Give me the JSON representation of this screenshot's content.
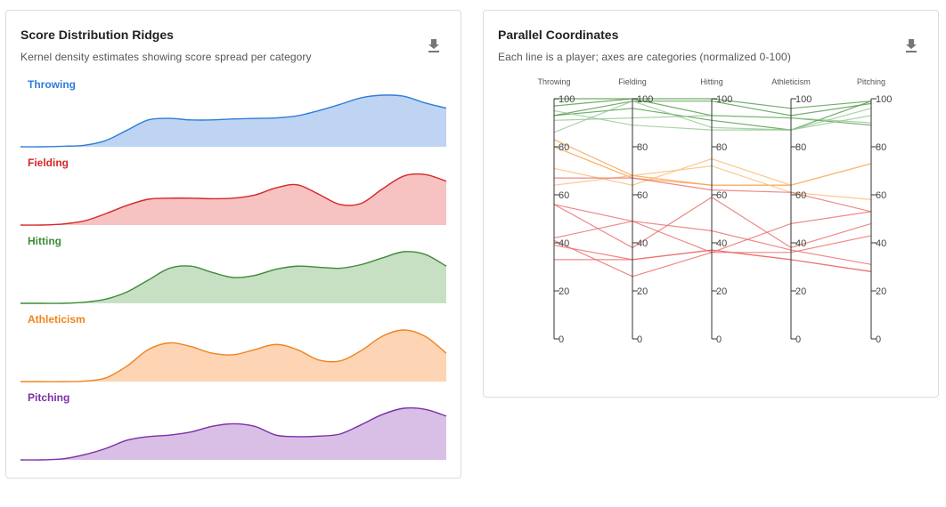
{
  "ridges_card": {
    "title": "Score Distribution Ridges",
    "subtitle": "Kernel density estimates showing score spread per category",
    "download_icon": "download-icon"
  },
  "parallel_card": {
    "title": "Parallel Coordinates",
    "subtitle": "Each line is a player; axes are categories (normalized 0-100)",
    "download_icon": "download-icon"
  },
  "chart_data": [
    {
      "type": "area",
      "subtype": "ridgeline",
      "x": [
        0,
        5,
        10,
        15,
        20,
        25,
        30,
        35,
        40,
        45,
        50,
        55,
        60,
        65,
        70,
        75,
        80,
        85,
        90,
        95,
        100
      ],
      "series": [
        {
          "name": "Throwing",
          "color": "#2f7ed8",
          "fill": "#bed4f2",
          "values": [
            0,
            0,
            0.01,
            0.03,
            0.12,
            0.32,
            0.52,
            0.55,
            0.52,
            0.52,
            0.54,
            0.55,
            0.56,
            0.6,
            0.7,
            0.82,
            0.95,
            1.0,
            0.98,
            0.85,
            0.75
          ]
        },
        {
          "name": "Fielding",
          "color": "#d62728",
          "fill": "#f6c2c2",
          "values": [
            0,
            0,
            0.02,
            0.08,
            0.22,
            0.38,
            0.5,
            0.52,
            0.52,
            0.51,
            0.52,
            0.58,
            0.72,
            0.78,
            0.6,
            0.4,
            0.42,
            0.7,
            0.95,
            0.98,
            0.85
          ]
        },
        {
          "name": "Hitting",
          "color": "#3d8b37",
          "fill": "#c7e0c4",
          "values": [
            0,
            0,
            0,
            0.02,
            0.08,
            0.22,
            0.45,
            0.68,
            0.72,
            0.6,
            0.5,
            0.54,
            0.66,
            0.72,
            0.7,
            0.68,
            0.75,
            0.88,
            1.0,
            0.95,
            0.72
          ]
        },
        {
          "name": "Athleticism",
          "color": "#f0831f",
          "fill": "#fdd5b5",
          "values": [
            0,
            0,
            0,
            0.01,
            0.07,
            0.3,
            0.62,
            0.75,
            0.68,
            0.55,
            0.52,
            0.62,
            0.72,
            0.62,
            0.42,
            0.4,
            0.6,
            0.88,
            1.0,
            0.88,
            0.55
          ]
        },
        {
          "name": "Pitching",
          "color": "#7b2fa8",
          "fill": "#d9bfe5",
          "values": [
            0,
            0,
            0.02,
            0.1,
            0.22,
            0.38,
            0.45,
            0.48,
            0.54,
            0.65,
            0.7,
            0.65,
            0.48,
            0.45,
            0.46,
            0.5,
            0.68,
            0.88,
            1.0,
            0.98,
            0.85
          ]
        }
      ]
    },
    {
      "type": "parallel",
      "axes": [
        "Throwing",
        "Fielding",
        "Hitting",
        "Athleticism",
        "Pitching"
      ],
      "ylim": [
        0,
        100
      ],
      "ticks": [
        0,
        20,
        40,
        60,
        80,
        100
      ],
      "lines": [
        {
          "color": "#5a9e52",
          "opacity": 0.85,
          "values": [
            100,
            100,
            100,
            96,
            99
          ]
        },
        {
          "color": "#5a9e52",
          "opacity": 0.85,
          "values": [
            97,
            100,
            93,
            92,
            89
          ]
        },
        {
          "color": "#5a9e52",
          "opacity": 0.85,
          "values": [
            93,
            96,
            91,
            87,
            99
          ]
        },
        {
          "color": "#5a9e52",
          "opacity": 0.85,
          "values": [
            93,
            99,
            99,
            93,
            98
          ]
        },
        {
          "color": "#8ec489",
          "opacity": 0.75,
          "values": [
            95,
            89,
            87,
            87,
            96
          ]
        },
        {
          "color": "#8ec489",
          "opacity": 0.75,
          "values": [
            86,
            99,
            88,
            87,
            93
          ]
        },
        {
          "color": "#8ec489",
          "opacity": 0.75,
          "values": [
            91,
            92,
            93,
            92,
            90
          ]
        },
        {
          "color": "#f7a553",
          "opacity": 0.85,
          "values": [
            83,
            68,
            64,
            64,
            73
          ]
        },
        {
          "color": "#f7a553",
          "opacity": 0.85,
          "values": [
            80,
            67,
            64,
            64,
            73
          ]
        },
        {
          "color": "#f9c07e",
          "opacity": 0.85,
          "values": [
            71,
            64,
            75,
            64,
            73
          ]
        },
        {
          "color": "#f9c07e",
          "opacity": 0.85,
          "values": [
            64,
            68,
            72,
            61,
            58
          ]
        },
        {
          "color": "#eb6b6b",
          "opacity": 0.8,
          "values": [
            67,
            67,
            62,
            61,
            53
          ]
        },
        {
          "color": "#eb6b6b",
          "opacity": 0.8,
          "values": [
            56,
            49,
            45,
            37,
            31
          ]
        },
        {
          "color": "#eb6b6b",
          "opacity": 0.8,
          "values": [
            56,
            38,
            59,
            38,
            48
          ]
        },
        {
          "color": "#eb6b6b",
          "opacity": 0.8,
          "values": [
            42,
            49,
            36,
            36,
            43
          ]
        },
        {
          "color": "#eb6b6b",
          "opacity": 0.8,
          "values": [
            41,
            26,
            36,
            48,
            53
          ]
        },
        {
          "color": "#eb6b6b",
          "opacity": 0.8,
          "values": [
            33,
            33,
            37,
            33,
            28
          ]
        },
        {
          "color": "#eb6b6b",
          "opacity": 0.8,
          "values": [
            39,
            33,
            37,
            33,
            28
          ]
        }
      ]
    }
  ]
}
